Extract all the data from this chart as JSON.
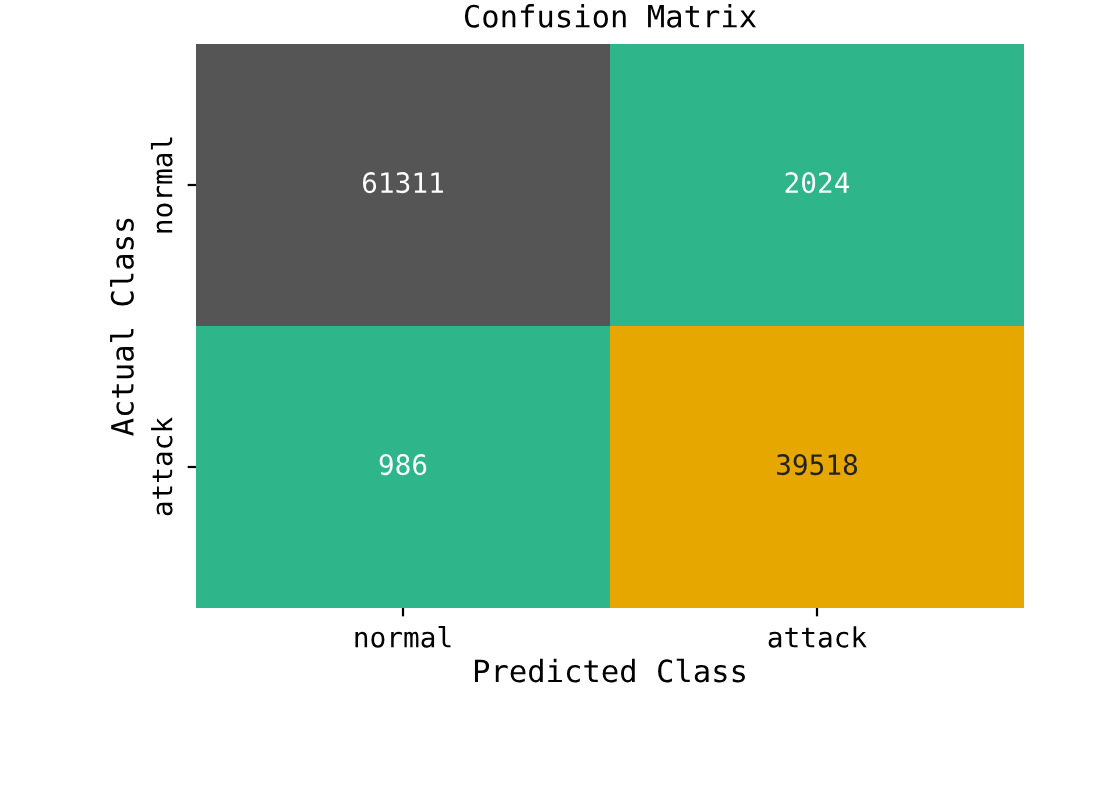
{
  "chart_data": {
    "type": "heatmap",
    "title": "Confusion Matrix",
    "xlabel": "Predicted Class",
    "ylabel": "Actual Class",
    "categories": [
      "normal",
      "attack"
    ],
    "y_categories": [
      "normal",
      "attack"
    ],
    "cells": [
      [
        61311,
        2024
      ],
      [
        986,
        39518
      ]
    ],
    "colors": [
      [
        "#555555",
        "#2fb58a"
      ],
      [
        "#2fb58a",
        "#e6a800"
      ]
    ],
    "data_labels": true
  }
}
